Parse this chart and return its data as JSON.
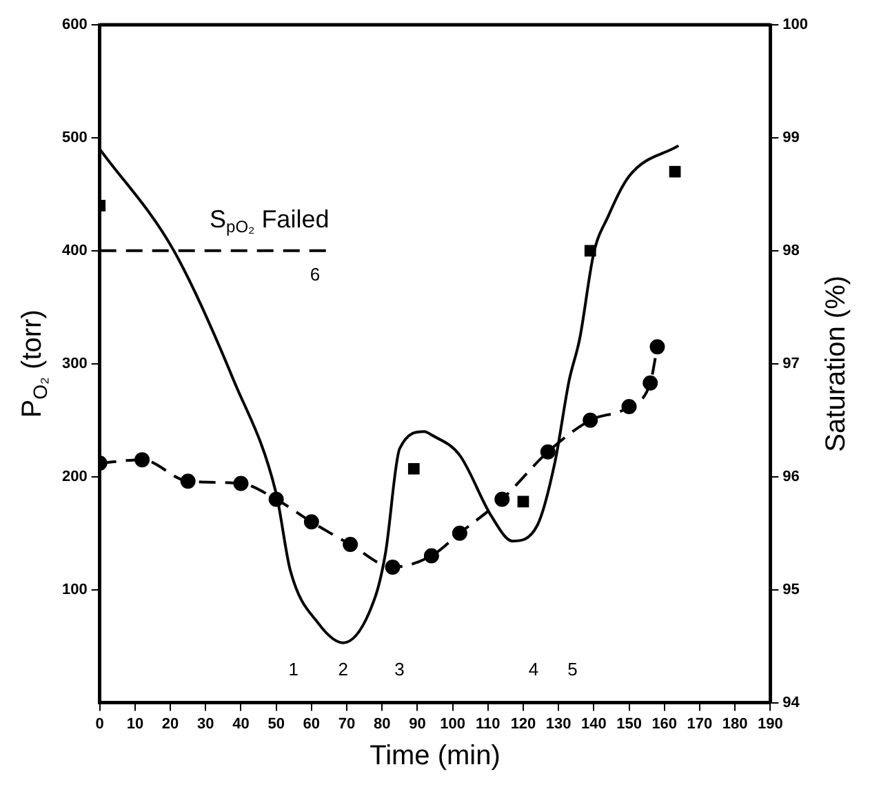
{
  "chart_data": {
    "type": "line",
    "xlabel": "Time (min)",
    "ylabel": "P$_{O₂}$ (torr)",
    "y2label": "Saturation (%)",
    "xlim": [
      0,
      190
    ],
    "xticks": [
      0,
      10,
      20,
      30,
      40,
      50,
      60,
      70,
      80,
      90,
      100,
      110,
      120,
      130,
      140,
      150,
      160,
      170,
      180,
      190
    ],
    "ylim": [
      0,
      600
    ],
    "yticks": [
      100,
      200,
      300,
      400,
      500,
      600
    ],
    "y2lim": [
      94,
      100
    ],
    "y2ticks": [
      94,
      95,
      96,
      97,
      98,
      99,
      100
    ],
    "grid": false,
    "legend": false,
    "series": [
      {
        "type": "line",
        "color": "#000000",
        "marker": "none",
        "line_style": "solid",
        "x": [
          0,
          21,
          38,
          50,
          54,
          62,
          69,
          78,
          81,
          85,
          92,
          94,
          102,
          111,
          117,
          124,
          129,
          133,
          136,
          140,
          144,
          150,
          164
        ],
        "values": [
          490,
          400,
          285,
          185,
          117,
          70,
          53,
          93,
          133,
          225,
          240,
          237,
          219,
          165,
          143,
          157,
          213,
          285,
          322,
          398,
          430,
          466,
          493
        ]
      },
      {
        "type": "scatter",
        "color": "#000000",
        "marker": "square",
        "x": [
          0,
          89,
          120,
          139,
          163
        ],
        "values": [
          440,
          207,
          178,
          400,
          470
        ]
      },
      {
        "type": "line",
        "axis": "y2",
        "color": "#000000",
        "marker": "circle",
        "line_style": "dashed",
        "x": [
          0,
          12,
          25,
          40,
          50,
          60,
          71,
          83,
          94,
          102,
          114,
          127,
          139,
          150,
          156,
          158
        ],
        "values": [
          96.12,
          96.15,
          95.96,
          95.94,
          95.8,
          95.6,
          95.4,
          95.2,
          95.3,
          95.5,
          95.8,
          96.22,
          96.5,
          96.62,
          96.83,
          97.15
        ]
      },
      {
        "type": "line",
        "name": "S$_{pO₂}$ Failed",
        "color": "#000000",
        "marker": "none",
        "line_style": "dashed",
        "x": [
          0,
          65
        ],
        "values": [
          400,
          400
        ]
      }
    ],
    "annotations": [
      "6",
      "1",
      "2",
      "3",
      "4",
      "5"
    ]
  }
}
